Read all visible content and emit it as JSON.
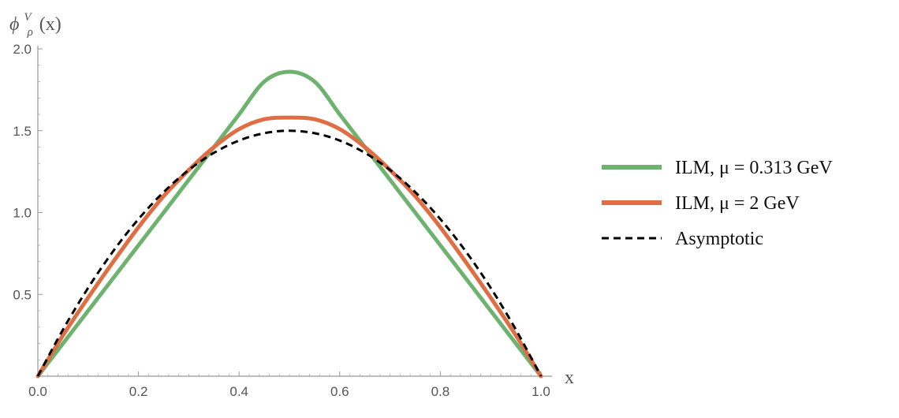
{
  "chart_data": {
    "type": "line",
    "xlabel": "x",
    "ylabel": {
      "base": "ϕ",
      "sup": "V",
      "sub": "ρ",
      "arg": "(x)"
    },
    "xlim": [
      0,
      1
    ],
    "ylim": [
      0,
      2
    ],
    "x_ticks": [
      "0.0",
      "0.2",
      "0.4",
      "0.6",
      "0.8",
      "1.0"
    ],
    "x_tick_values": [
      0,
      0.2,
      0.4,
      0.6,
      0.8,
      1.0
    ],
    "y_ticks": [
      "0.5",
      "1.0",
      "1.5",
      "2.0"
    ],
    "y_tick_values": [
      0.5,
      1.0,
      1.5,
      2.0
    ],
    "grid": false,
    "legend_position": "right",
    "series": [
      {
        "name": "ILM, μ = 0.313 GeV",
        "color": "#6db36f",
        "style": "solid",
        "x": [
          0,
          0.05,
          0.1,
          0.15,
          0.2,
          0.25,
          0.3,
          0.35,
          0.4,
          0.45,
          0.5,
          0.55,
          0.6,
          0.65,
          0.7,
          0.75,
          0.8,
          0.85,
          0.9,
          0.95,
          1.0
        ],
        "y": [
          0,
          0.2,
          0.4,
          0.6,
          0.8,
          1.0,
          1.2,
          1.4,
          1.6,
          1.8,
          1.86,
          1.8,
          1.6,
          1.4,
          1.2,
          1.0,
          0.8,
          0.6,
          0.4,
          0.2,
          0
        ]
      },
      {
        "name": "ILM, μ = 2 GeV",
        "color": "#e06e45",
        "style": "solid",
        "x": [
          0,
          0.05,
          0.1,
          0.15,
          0.2,
          0.25,
          0.3,
          0.35,
          0.4,
          0.45,
          0.5,
          0.55,
          0.6,
          0.65,
          0.7,
          0.75,
          0.8,
          0.85,
          0.9,
          0.95,
          1.0
        ],
        "y": [
          0,
          0.25,
          0.48,
          0.7,
          0.91,
          1.1,
          1.26,
          1.4,
          1.51,
          1.57,
          1.58,
          1.57,
          1.51,
          1.4,
          1.26,
          1.1,
          0.91,
          0.7,
          0.48,
          0.25,
          0
        ]
      },
      {
        "name": "Asymptotic",
        "color": "#000000",
        "style": "dashed",
        "x": [
          0,
          0.05,
          0.1,
          0.15,
          0.2,
          0.25,
          0.3,
          0.35,
          0.4,
          0.45,
          0.5,
          0.55,
          0.6,
          0.65,
          0.7,
          0.75,
          0.8,
          0.85,
          0.9,
          0.95,
          1.0
        ],
        "y": [
          0,
          0.285,
          0.54,
          0.765,
          0.96,
          1.125,
          1.26,
          1.365,
          1.44,
          1.485,
          1.5,
          1.485,
          1.44,
          1.365,
          1.26,
          1.125,
          0.96,
          0.765,
          0.54,
          0.285,
          0
        ]
      }
    ]
  }
}
